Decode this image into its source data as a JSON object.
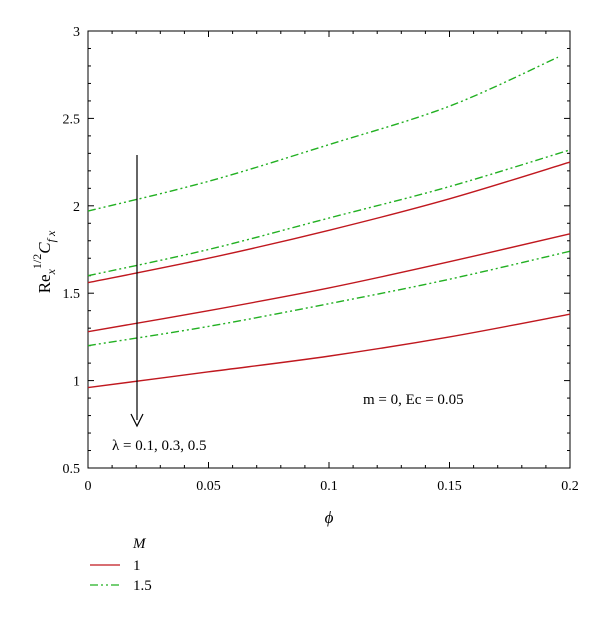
{
  "chart_data": {
    "type": "line",
    "xlabel": "ϕ",
    "ylabel": "Re_x^{1/2} C_{f x}",
    "xlim": [
      0,
      0.2
    ],
    "ylim": [
      0.5,
      3
    ],
    "xticks": [
      "0",
      "0.05",
      "0.1",
      "0.15",
      "0.2"
    ],
    "yticks": [
      "0.5",
      "1",
      "1.5",
      "2",
      "2.5",
      "3"
    ],
    "grid": false,
    "legend": {
      "title": "M",
      "placement": "bottom-left",
      "entries": [
        {
          "label": "1",
          "color": "#c0181f",
          "style": "solid"
        },
        {
          "label": "1.5",
          "color": "#22b022",
          "style": "dash-dot-dot"
        }
      ]
    },
    "annotations": {
      "params": "m = 0, Ec = 0.05",
      "lambda": "λ = 0.1, 0.3, 0.5"
    },
    "series": [
      {
        "group": "M=1",
        "color": "#c0181f",
        "style": "solid",
        "x": [
          0,
          0.05,
          0.1,
          0.15,
          0.2
        ],
        "y": [
          1.56,
          1.7,
          1.86,
          2.04,
          2.25
        ]
      },
      {
        "group": "M=1",
        "color": "#c0181f",
        "style": "solid",
        "x": [
          0,
          0.05,
          0.1,
          0.15,
          0.2
        ],
        "y": [
          1.28,
          1.4,
          1.53,
          1.68,
          1.84
        ]
      },
      {
        "group": "M=1",
        "color": "#c0181f",
        "style": "solid",
        "x": [
          0,
          0.05,
          0.1,
          0.15,
          0.2
        ],
        "y": [
          0.96,
          1.05,
          1.14,
          1.25,
          1.38
        ]
      },
      {
        "group": "M=1.5",
        "color": "#22b022",
        "style": "dash-dot-dot",
        "x": [
          0,
          0.05,
          0.1,
          0.15,
          0.195
        ],
        "y": [
          1.97,
          2.14,
          2.35,
          2.57,
          2.85
        ]
      },
      {
        "group": "M=1.5",
        "color": "#22b022",
        "style": "dash-dot-dot",
        "x": [
          0,
          0.05,
          0.1,
          0.15,
          0.2
        ],
        "y": [
          1.6,
          1.75,
          1.93,
          2.11,
          2.32
        ]
      },
      {
        "group": "M=1.5",
        "color": "#22b022",
        "style": "dash-dot-dot",
        "x": [
          0,
          0.05,
          0.1,
          0.15,
          0.2
        ],
        "y": [
          1.2,
          1.31,
          1.44,
          1.58,
          1.74
        ]
      }
    ]
  }
}
